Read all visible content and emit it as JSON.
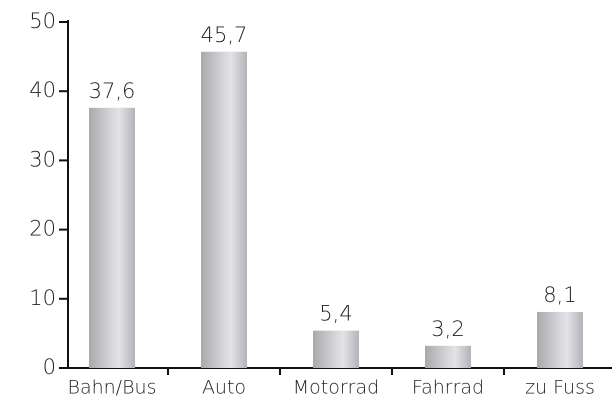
{
  "chart_data": {
    "type": "bar",
    "categories": [
      "Bahn/Bus",
      "Auto",
      "Motorrad",
      "Fahrrad",
      "zu Fuss"
    ],
    "values": [
      37.6,
      45.7,
      5.4,
      3.2,
      8.1
    ],
    "value_labels": [
      "37,6",
      "45,7",
      "5,4",
      "3,2",
      "8,1"
    ],
    "color": "#b8b8bc",
    "ylim": [
      0,
      50
    ],
    "yticks": [
      0,
      10,
      20,
      30,
      40,
      50
    ],
    "grid": false
  }
}
